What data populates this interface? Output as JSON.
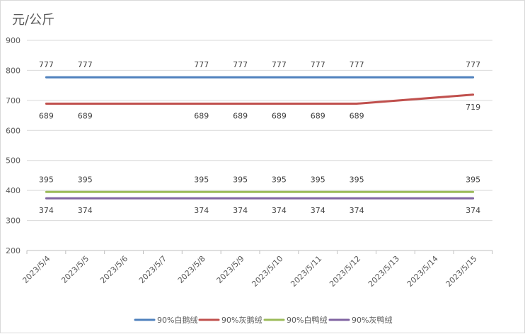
{
  "chart_data": {
    "type": "line",
    "title": "",
    "unit_label": "元/公斤",
    "xlabel": "",
    "ylabel": "",
    "categories": [
      "2023/5/4",
      "2023/5/5",
      "2023/5/6",
      "2023/5/7",
      "2023/5/8",
      "2023/5/9",
      "2023/5/10",
      "2023/5/11",
      "2023/5/12",
      "2023/5/13",
      "2023/5/14",
      "2023/5/15"
    ],
    "ylim": [
      200,
      900
    ],
    "yticks": [
      200,
      300,
      400,
      500,
      600,
      700,
      800,
      900
    ],
    "grid": true,
    "legend_position": "bottom",
    "series": [
      {
        "name": "90%白鹅绒",
        "color": "#4f81bd",
        "values": [
          777,
          777,
          null,
          null,
          777,
          777,
          777,
          777,
          777,
          null,
          null,
          777
        ],
        "label_side": "above"
      },
      {
        "name": "90%灰鹅绒",
        "color": "#c0504d",
        "values": [
          689,
          689,
          null,
          null,
          689,
          689,
          689,
          689,
          689,
          null,
          null,
          719
        ],
        "label_side": "below"
      },
      {
        "name": "90%白鸭绒",
        "color": "#9bbb59",
        "values": [
          395,
          395,
          null,
          null,
          395,
          395,
          395,
          395,
          395,
          null,
          null,
          395
        ],
        "label_side": "above"
      },
      {
        "name": "90%灰鸭绒",
        "color": "#8064a2",
        "values": [
          374,
          374,
          null,
          null,
          374,
          374,
          374,
          374,
          374,
          null,
          null,
          374
        ],
        "label_side": "below"
      }
    ]
  }
}
